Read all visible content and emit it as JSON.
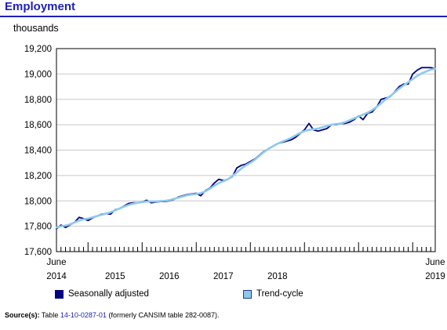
{
  "title": "Employment",
  "unit_label": "thousands",
  "legend": {
    "seasonally_adjusted": "Seasonally adjusted",
    "trend_cycle": "Trend-cycle"
  },
  "source": {
    "label": "Source(s):",
    "prefix": "Table",
    "table_id": "14-10-0287-01",
    "suffix": "(formerly CANSIM table 282-0087)."
  },
  "colors": {
    "title": "#1f1fb8",
    "seasonally_adjusted": "#000080",
    "trend_cycle": "#8ec8ee",
    "trend_swatch_border": "#1f3f8f"
  },
  "chart_data": {
    "type": "line",
    "ylabel": "thousands",
    "ylim": [
      17600,
      19200
    ],
    "yticks": [
      17600,
      17800,
      18000,
      18200,
      18400,
      18600,
      18800,
      19000,
      19200
    ],
    "ytick_labels": [
      "17,600",
      "17,800",
      "18,000",
      "18,200",
      "18,400",
      "18,600",
      "18,800",
      "19,000",
      "19,200"
    ],
    "x_start": "2014-06",
    "x_end": "2019-06",
    "x_labels": [
      {
        "month": "June",
        "year": "2014"
      },
      {
        "month": "",
        "year": "2015"
      },
      {
        "month": "",
        "year": "2016"
      },
      {
        "month": "",
        "year": "2017"
      },
      {
        "month": "",
        "year": "2018"
      },
      {
        "month": "June",
        "year": "2019"
      }
    ],
    "grid": "horizontal",
    "legend_position": "bottom",
    "series": [
      {
        "name": "Seasonally adjusted",
        "values": [
          17780,
          17810,
          17790,
          17810,
          17830,
          17870,
          17860,
          17845,
          17865,
          17880,
          17895,
          17900,
          17895,
          17930,
          17940,
          17960,
          17980,
          17985,
          17985,
          17990,
          18005,
          17985,
          17990,
          17995,
          17995,
          18000,
          18010,
          18030,
          18040,
          18050,
          18055,
          18060,
          18040,
          18080,
          18100,
          18140,
          18170,
          18160,
          18170,
          18190,
          18260,
          18280,
          18290,
          18310,
          18330,
          18360,
          18390,
          18410,
          18430,
          18450,
          18460,
          18470,
          18480,
          18500,
          18530,
          18560,
          18610,
          18560,
          18550,
          18560,
          18570,
          18600,
          18600,
          18610,
          18610,
          18620,
          18640,
          18670,
          18640,
          18690,
          18700,
          18740,
          18800,
          18810,
          18820,
          18860,
          18900,
          18920,
          18920,
          19000,
          19030,
          19050,
          19050,
          19050,
          19040
        ]
      },
      {
        "name": "Trend-cycle",
        "values": [
          17790,
          17800,
          17805,
          17815,
          17830,
          17845,
          17855,
          17860,
          17870,
          17880,
          17890,
          17900,
          17910,
          17925,
          17940,
          17955,
          17968,
          17978,
          17985,
          17990,
          17995,
          17995,
          17995,
          17998,
          18000,
          18005,
          18015,
          18025,
          18035,
          18045,
          18050,
          18055,
          18060,
          18075,
          18095,
          18120,
          18140,
          18155,
          18170,
          18195,
          18225,
          18255,
          18280,
          18300,
          18325,
          18355,
          18385,
          18410,
          18430,
          18450,
          18465,
          18480,
          18495,
          18515,
          18535,
          18550,
          18560,
          18565,
          18570,
          18580,
          18590,
          18600,
          18605,
          18610,
          18620,
          18635,
          18650,
          18665,
          18680,
          18695,
          18715,
          18740,
          18770,
          18800,
          18825,
          18855,
          18885,
          18910,
          18935,
          18960,
          18985,
          19005,
          19020,
          19035,
          19040
        ]
      }
    ]
  }
}
